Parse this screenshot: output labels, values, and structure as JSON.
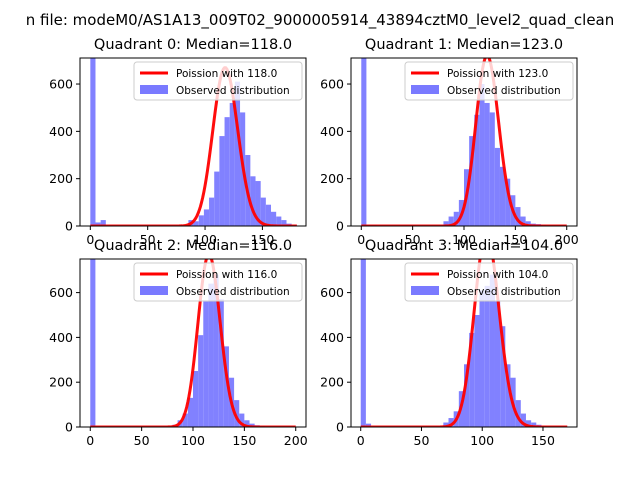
{
  "figure_title": "n file: modeM0/AS1A13_009T02_9000005914_43894cztM0_level2_quad_clean",
  "colors": {
    "hist": "#7a7aff",
    "poisson": "#ff0000",
    "axis": "#000000",
    "background": "#ffffff"
  },
  "chart_data": [
    {
      "type": "bar",
      "title": "Quadrant 0: Median=118.0",
      "xlim": [
        -9,
        188
      ],
      "ylim": [
        0,
        710
      ],
      "xticks": [
        0,
        50,
        100,
        150
      ],
      "yticks": [
        0,
        200,
        400,
        600
      ],
      "legend": {
        "position": "top-right",
        "entries": [
          "Poission with 118.0",
          "Observed distribution"
        ]
      },
      "series": [
        {
          "name": "Observed distribution",
          "type": "histogram",
          "bin_width": 4.5,
          "bin_starts": [
            0,
            4.5,
            9,
            13.5,
            18,
            22.5,
            27,
            31.5,
            36,
            40.5,
            45,
            49.5,
            54,
            58.5,
            63,
            67.5,
            72,
            76.5,
            81,
            85.5,
            90,
            94.5,
            99,
            103.5,
            108,
            112.5,
            117,
            121.5,
            126,
            130.5,
            135,
            139.5,
            144,
            148.5,
            153,
            157.5,
            162,
            166.5,
            171,
            175.5
          ],
          "counts": [
            710,
            15,
            25,
            0,
            0,
            0,
            0,
            0,
            0,
            0,
            0,
            0,
            0,
            0,
            0,
            0,
            0,
            0,
            0,
            25,
            20,
            45,
            70,
            120,
            230,
            380,
            460,
            520,
            610,
            480,
            300,
            210,
            190,
            120,
            90,
            60,
            40,
            25,
            10,
            5
          ]
        },
        {
          "name": "Poission with 118.0",
          "type": "line",
          "mean": 118,
          "x_range": [
            0,
            180
          ]
        }
      ]
    },
    {
      "type": "bar",
      "title": "Quadrant 1: Median=123.0",
      "xlim": [
        -10,
        210
      ],
      "ylim": [
        0,
        710
      ],
      "xticks": [
        0,
        50,
        100,
        150,
        200
      ],
      "yticks": [
        0,
        200,
        400,
        600
      ],
      "legend": {
        "position": "top-right",
        "entries": [
          "Poission with 123.0",
          "Observed distribution"
        ]
      },
      "series": [
        {
          "name": "Observed distribution",
          "type": "histogram",
          "bin_width": 5,
          "bin_starts": [
            0,
            5,
            10,
            15,
            20,
            25,
            30,
            35,
            40,
            45,
            50,
            55,
            60,
            65,
            70,
            75,
            80,
            85,
            90,
            95,
            100,
            105,
            110,
            115,
            120,
            125,
            130,
            135,
            140,
            145,
            150,
            155,
            160,
            165,
            170,
            175,
            180,
            185,
            190,
            195
          ],
          "counts": [
            710,
            5,
            5,
            0,
            0,
            0,
            0,
            0,
            0,
            0,
            0,
            0,
            0,
            0,
            0,
            0,
            20,
            40,
            60,
            110,
            240,
            380,
            470,
            600,
            520,
            480,
            330,
            250,
            200,
            130,
            80,
            40,
            20,
            10,
            8,
            5,
            0,
            0,
            0,
            0
          ]
        },
        {
          "name": "Poission with 123.0",
          "type": "line",
          "mean": 123,
          "x_range": [
            0,
            200
          ]
        }
      ]
    },
    {
      "type": "bar",
      "title": "Quadrant 2: Median=116.0",
      "xlim": [
        -10,
        210
      ],
      "ylim": [
        0,
        750
      ],
      "xticks": [
        0,
        50,
        100,
        150,
        200
      ],
      "yticks": [
        0,
        200,
        400,
        600
      ],
      "legend": {
        "position": "top-right",
        "entries": [
          "Poission with 116.0",
          "Observed distribution"
        ]
      },
      "series": [
        {
          "name": "Observed distribution",
          "type": "histogram",
          "bin_width": 5,
          "bin_starts": [
            0,
            5,
            10,
            15,
            20,
            25,
            30,
            35,
            40,
            45,
            50,
            55,
            60,
            65,
            70,
            75,
            80,
            85,
            90,
            95,
            100,
            105,
            110,
            115,
            120,
            125,
            130,
            135,
            140,
            145,
            150,
            155,
            160,
            165,
            170,
            175,
            180,
            185,
            190,
            195
          ],
          "counts": [
            750,
            0,
            0,
            0,
            0,
            0,
            0,
            0,
            0,
            0,
            0,
            0,
            0,
            0,
            0,
            0,
            10,
            30,
            60,
            130,
            250,
            410,
            560,
            640,
            680,
            570,
            360,
            220,
            120,
            60,
            30,
            15,
            8,
            5,
            0,
            0,
            0,
            0,
            0,
            0
          ]
        },
        {
          "name": "Poission with 116.0",
          "type": "line",
          "mean": 116,
          "x_range": [
            0,
            200
          ]
        }
      ]
    },
    {
      "type": "bar",
      "title": "Quadrant 3: Median=104.0",
      "xlim": [
        -8,
        178
      ],
      "ylim": [
        0,
        750
      ],
      "xticks": [
        0,
        50,
        100,
        150
      ],
      "yticks": [
        0,
        200,
        400,
        600
      ],
      "legend": {
        "position": "top-right",
        "entries": [
          "Poission with 104.0",
          "Observed distribution"
        ]
      },
      "series": [
        {
          "name": "Observed distribution",
          "type": "histogram",
          "bin_width": 4.25,
          "bin_starts": [
            0,
            4.25,
            8.5,
            12.75,
            17,
            21.25,
            25.5,
            29.75,
            34,
            38.25,
            42.5,
            46.75,
            51,
            55.25,
            59.5,
            63.75,
            68,
            72.25,
            76.5,
            80.75,
            85,
            89.25,
            93.5,
            97.75,
            102,
            106.25,
            110.5,
            114.75,
            119,
            123.25,
            127.5,
            131.75,
            136,
            140.25,
            144.5,
            148.75,
            153,
            157.25,
            161.5,
            165.75
          ],
          "counts": [
            750,
            15,
            0,
            0,
            0,
            0,
            0,
            0,
            0,
            0,
            0,
            0,
            0,
            0,
            0,
            0,
            20,
            40,
            70,
            160,
            280,
            420,
            500,
            610,
            630,
            680,
            560,
            450,
            280,
            220,
            120,
            60,
            30,
            20,
            10,
            5,
            0,
            0,
            0,
            0
          ]
        },
        {
          "name": "Poission with 104.0",
          "type": "line",
          "mean": 104,
          "x_range": [
            0,
            170
          ]
        }
      ]
    }
  ]
}
